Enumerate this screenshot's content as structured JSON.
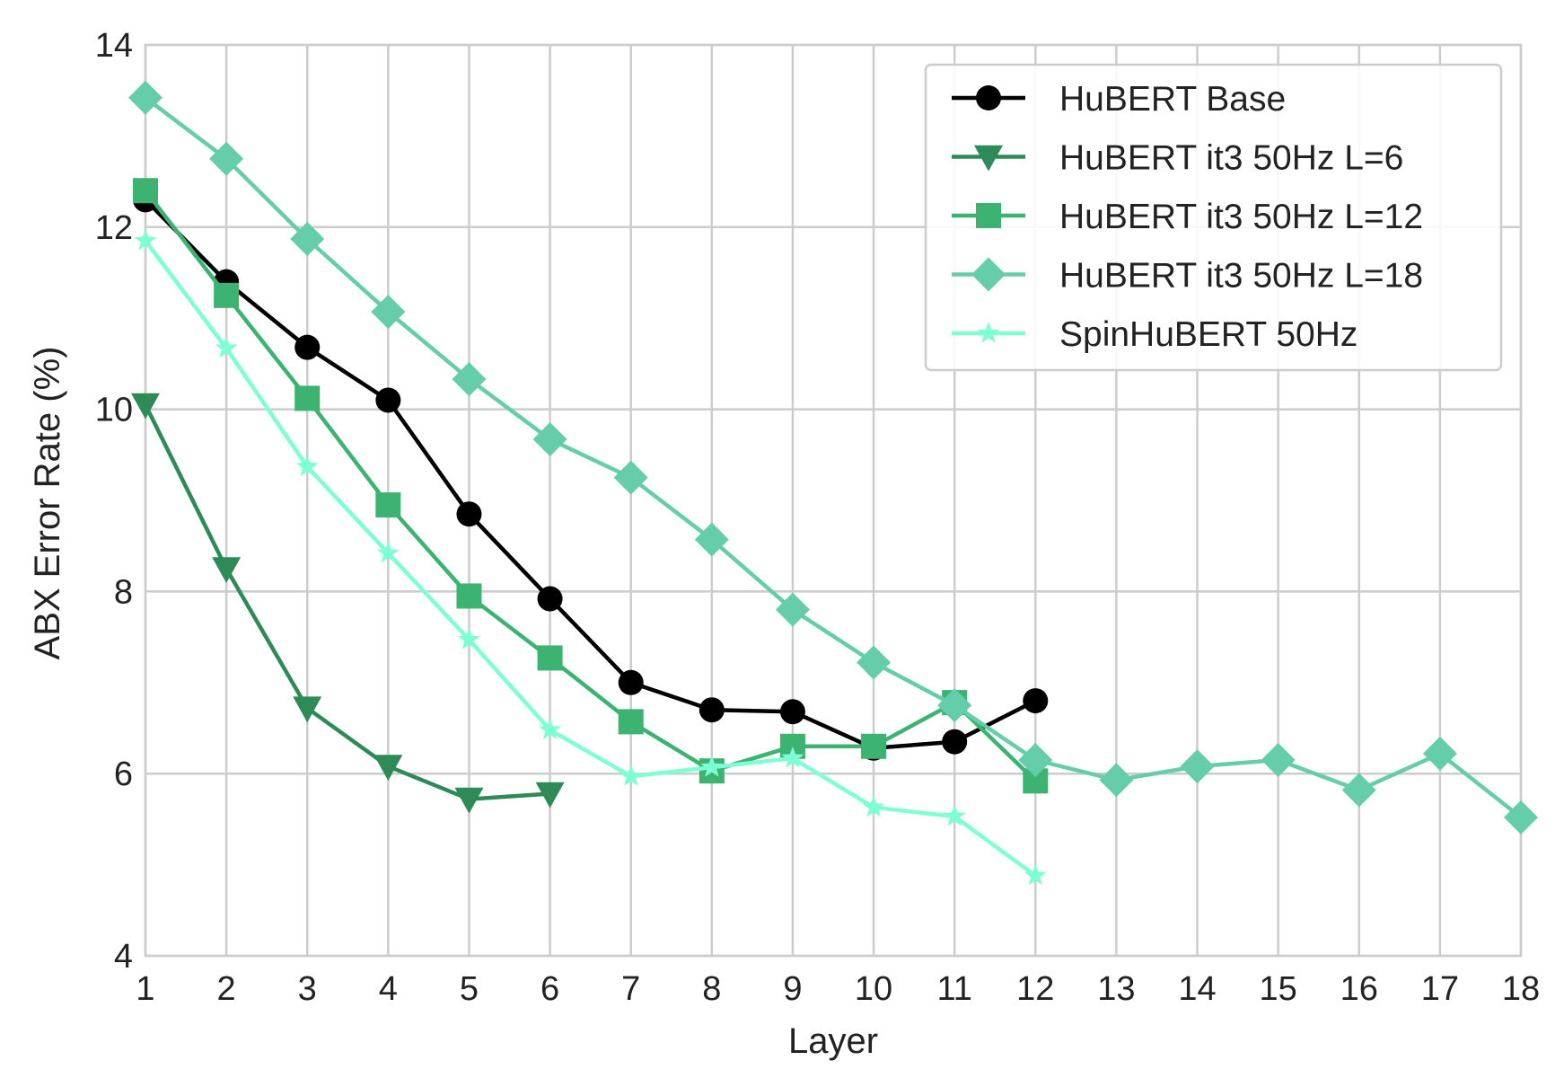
{
  "chart_data": {
    "type": "line",
    "xlabel": "Layer",
    "ylabel": "ABX Error Rate (%)",
    "xlim": [
      1,
      18
    ],
    "ylim": [
      4,
      14
    ],
    "x_ticks": [
      1,
      2,
      3,
      4,
      5,
      6,
      7,
      8,
      9,
      10,
      11,
      12,
      13,
      14,
      15,
      16,
      17,
      18
    ],
    "y_ticks": [
      4,
      6,
      8,
      10,
      12,
      14
    ],
    "grid": true,
    "legend_position": "top-right",
    "series": [
      {
        "name": "HuBERT Base",
        "color": "#000000",
        "marker": "circle",
        "x": [
          1,
          2,
          3,
          4,
          5,
          6,
          7,
          8,
          9,
          10,
          11,
          12
        ],
        "y": [
          12.3,
          11.4,
          10.68,
          10.1,
          8.85,
          7.92,
          7.0,
          6.7,
          6.68,
          6.28,
          6.35,
          6.8
        ]
      },
      {
        "name": "HuBERT it3 50Hz L=6",
        "color": "#2e8b57",
        "marker": "triangle-down",
        "x": [
          1,
          2,
          3,
          4,
          5,
          6
        ],
        "y": [
          10.05,
          8.25,
          6.72,
          6.08,
          5.72,
          5.78
        ]
      },
      {
        "name": "HuBERT it3 50Hz L=12",
        "color": "#3cb371",
        "marker": "square",
        "x": [
          1,
          2,
          3,
          4,
          5,
          6,
          7,
          8,
          9,
          10,
          11,
          12
        ],
        "y": [
          12.4,
          11.25,
          10.12,
          8.95,
          7.95,
          7.27,
          6.57,
          6.03,
          6.3,
          6.3,
          6.78,
          5.92
        ]
      },
      {
        "name": "HuBERT it3 50Hz L=18",
        "color": "#66cdaa",
        "marker": "diamond",
        "x": [
          1,
          2,
          3,
          4,
          5,
          6,
          7,
          8,
          9,
          10,
          11,
          12,
          13,
          14,
          15,
          16,
          17,
          18
        ],
        "y": [
          13.42,
          12.75,
          11.87,
          11.07,
          10.33,
          9.67,
          9.25,
          8.57,
          7.8,
          7.22,
          6.75,
          6.15,
          5.93,
          6.08,
          6.15,
          5.82,
          6.22,
          5.52
        ]
      },
      {
        "name": "SpinHuBERT 50Hz",
        "color": "#7fffd4",
        "marker": "star",
        "x": [
          1,
          2,
          3,
          4,
          5,
          6,
          7,
          8,
          9,
          10,
          11,
          12
        ],
        "y": [
          11.85,
          10.67,
          9.37,
          8.42,
          7.47,
          6.48,
          5.97,
          6.07,
          6.17,
          5.63,
          5.53,
          4.88
        ]
      }
    ]
  }
}
